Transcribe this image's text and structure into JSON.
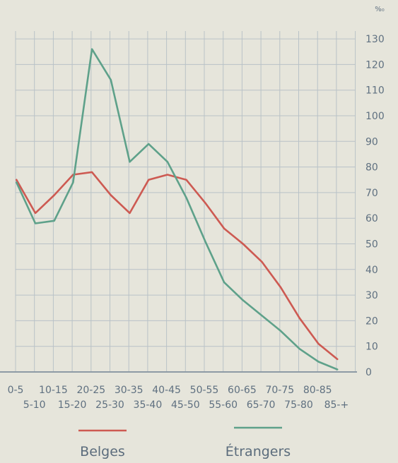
{
  "chart_data": {
    "type": "line",
    "unit_label": "%₀",
    "x_labels_top": [
      "0-5",
      "10-15",
      "20-25",
      "30-35",
      "40-45",
      "50-55",
      "60-65",
      "70-75",
      "80-85"
    ],
    "x_labels_bottom": [
      "5-10",
      "15-20",
      "25-30",
      "35-40",
      "45-50",
      "55-60",
      "65-70",
      "75-80",
      "85-+"
    ],
    "x": [
      "0-5",
      "5-10",
      "10-15",
      "15-20",
      "20-25",
      "25-30",
      "30-35",
      "35-40",
      "40-45",
      "45-50",
      "50-55",
      "55-60",
      "60-65",
      "65-70",
      "70-75",
      "75-80",
      "80-85",
      "85-+"
    ],
    "y_ticks": [
      0,
      10,
      20,
      30,
      40,
      50,
      60,
      70,
      80,
      90,
      100,
      110,
      120,
      130
    ],
    "ylim": [
      0,
      130
    ],
    "grid": true,
    "legend_position": "bottom",
    "series": [
      {
        "name": "Belges",
        "color": "#cd5a52",
        "values": [
          75,
          62,
          69,
          77,
          78,
          69,
          62,
          75,
          77,
          75,
          66,
          56,
          50,
          43,
          33,
          21,
          11,
          5
        ]
      },
      {
        "name": "Étrangers",
        "color": "#5ea18a",
        "values": [
          74,
          58,
          59,
          74,
          126,
          114,
          82,
          89,
          82,
          68,
          51,
          35,
          28,
          22,
          16,
          9,
          4,
          1
        ]
      }
    ]
  }
}
